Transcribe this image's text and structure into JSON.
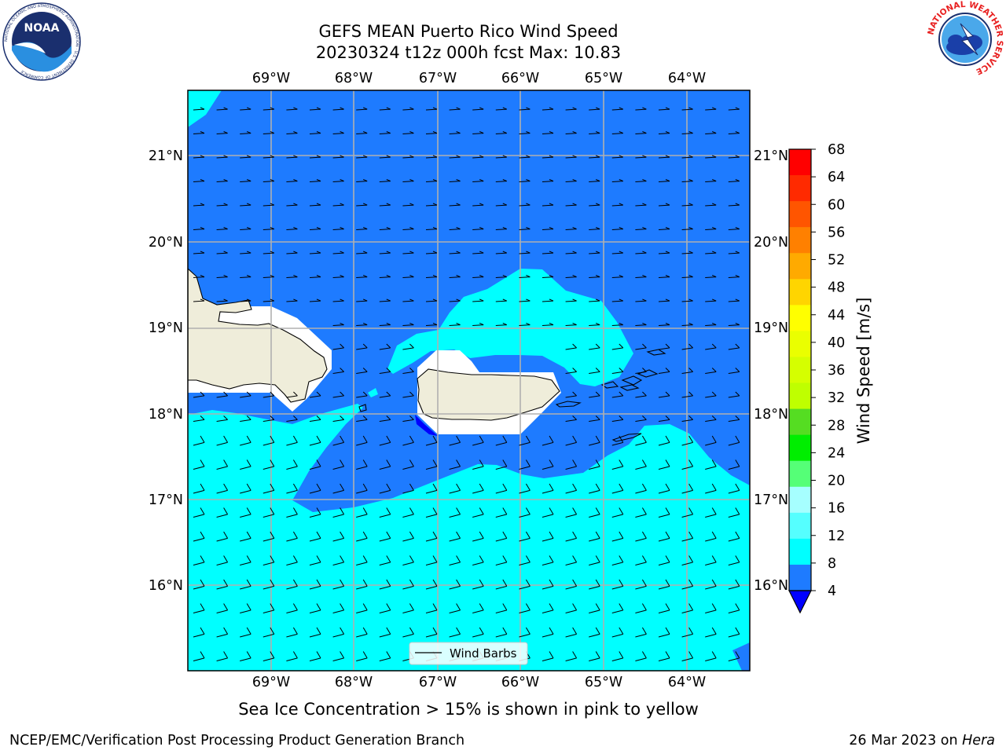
{
  "title_line1": "GEFS MEAN Puerto Rico Wind Speed",
  "title_line2": "20230324 t12z 000h fcst   Max: 10.83",
  "note": "Sea Ice Concentration > 15% is shown in pink to yellow",
  "footer_left": "NCEP/EMC/Verification Post Processing Product Generation Branch",
  "footer_date": "26 Mar 2023 on ",
  "footer_host": "Hera",
  "logos": {
    "noaa_text": "NOAA",
    "noaa_ring": "NATIONAL OCEANIC AND ATMOSPHERIC ADMINISTRATION · U.S. DEPARTMENT OF COMMERCE",
    "nws_ring": "NATIONAL WEATHER SERVICE"
  },
  "map": {
    "lon_labels": [
      "69°W",
      "68°W",
      "67°W",
      "66°W",
      "65°W",
      "64°W"
    ],
    "lat_labels": [
      "21°N",
      "20°N",
      "19°N",
      "18°N",
      "17°N",
      "16°N"
    ],
    "legend_label": "Wind Barbs",
    "colors": {
      "ocean_mid": "#1e7bff",
      "ocean_high": "#00ffff",
      "land": "#efedda",
      "under": "#0000ff",
      "grid": "#b0b0b0"
    }
  },
  "colorbar": {
    "label": "Wind Speed [m/s]",
    "ticks": [
      "68",
      "64",
      "60",
      "56",
      "52",
      "48",
      "44",
      "40",
      "36",
      "32",
      "28",
      "24",
      "20",
      "16",
      "12",
      "8",
      "4"
    ],
    "colors_top_to_bottom": [
      "#ff0000",
      "#ff2a00",
      "#ff5500",
      "#ff8000",
      "#ffaa00",
      "#ffd500",
      "#ffff00",
      "#eaff00",
      "#d5ff00",
      "#bfff00",
      "#55dd22",
      "#00ee00",
      "#55ff77",
      "#a6ffff",
      "#55ffff",
      "#00ffff",
      "#1e7bff"
    ],
    "under_color": "#0000ff"
  }
}
